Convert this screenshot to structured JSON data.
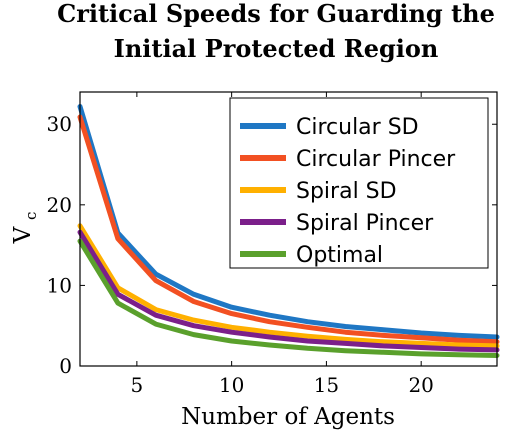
{
  "chart_data": {
    "type": "line",
    "title_lines": [
      "Critical Speeds for Guarding the",
      "Initial Protected Region"
    ],
    "xlabel": "Number of Agents",
    "ylabel": "V",
    "ylabel_sub": "c",
    "xlim": [
      2,
      24
    ],
    "ylim": [
      0,
      34
    ],
    "x_ticks": [
      5,
      10,
      15,
      20
    ],
    "y_ticks": [
      0,
      10,
      20,
      30
    ],
    "x": [
      2,
      4,
      6,
      8,
      10,
      12,
      14,
      16,
      18,
      20,
      22,
      24
    ],
    "legend_position": "top-right",
    "series": [
      {
        "name": "Circular SD",
        "color": "#1f77c4",
        "values": [
          32.2,
          16.5,
          11.4,
          8.9,
          7.3,
          6.3,
          5.5,
          4.9,
          4.5,
          4.1,
          3.8,
          3.6
        ]
      },
      {
        "name": "Circular Pincer",
        "color": "#f25022",
        "values": [
          30.9,
          15.8,
          10.6,
          8.0,
          6.5,
          5.5,
          4.8,
          4.2,
          3.8,
          3.5,
          3.2,
          3.0
        ]
      },
      {
        "name": "Spiral SD",
        "color": "#ffb000",
        "values": [
          17.4,
          9.7,
          7.0,
          5.7,
          4.8,
          4.2,
          3.7,
          3.3,
          3.0,
          2.8,
          2.6,
          2.5
        ]
      },
      {
        "name": "Spiral Pincer",
        "color": "#7b1f8a",
        "values": [
          16.6,
          8.9,
          6.3,
          5.0,
          4.2,
          3.6,
          3.1,
          2.8,
          2.5,
          2.3,
          2.1,
          2.0
        ]
      },
      {
        "name": "Optimal",
        "color": "#5aa02c",
        "values": [
          15.5,
          7.8,
          5.2,
          3.9,
          3.1,
          2.6,
          2.2,
          1.9,
          1.7,
          1.5,
          1.4,
          1.3
        ]
      }
    ]
  }
}
